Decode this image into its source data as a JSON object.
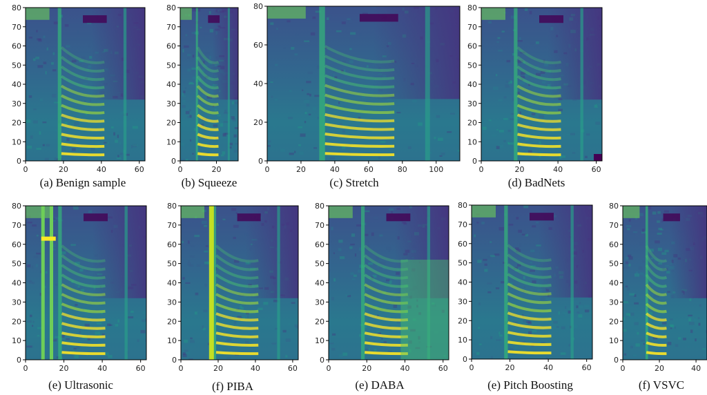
{
  "figure": {
    "palette": [
      "#440154",
      "#46327e",
      "#365c8d",
      "#277f8e",
      "#1fa187",
      "#4ac16d",
      "#a0da39",
      "#fde725"
    ],
    "panels": [
      {
        "caption": "(a) Benign sample",
        "x_ticks": [
          0,
          20,
          40,
          60
        ],
        "x_max": 63,
        "y_ticks": [
          0,
          10,
          20,
          30,
          40,
          50,
          60,
          70,
          80
        ],
        "y_max": 80
      },
      {
        "caption": "(b) Squeeze",
        "x_ticks": [
          0,
          20
        ],
        "x_max": 32,
        "y_ticks": [
          0,
          10,
          20,
          30,
          40,
          50,
          60,
          70,
          80
        ],
        "y_max": 80
      },
      {
        "caption": "(c) Stretch",
        "x_ticks": [
          0,
          20,
          40,
          60,
          80,
          100
        ],
        "x_max": 114,
        "y_ticks": [
          0,
          20,
          40,
          60,
          80
        ],
        "y_max": 80
      },
      {
        "caption": "(d) BadNets",
        "x_ticks": [
          0,
          20,
          40,
          60
        ],
        "x_max": 63,
        "y_ticks": [
          0,
          10,
          20,
          30,
          40,
          50,
          60,
          70,
          80
        ],
        "y_max": 80
      },
      {
        "caption": "(e) Ultrasonic",
        "x_ticks": [
          0,
          20,
          40,
          60
        ],
        "x_max": 63,
        "y_ticks": [
          0,
          10,
          20,
          30,
          40,
          50,
          60,
          70,
          80
        ],
        "y_max": 80
      },
      {
        "caption": "(f) PIBA",
        "x_ticks": [
          0,
          20,
          40,
          60
        ],
        "x_max": 63,
        "y_ticks": [
          0,
          10,
          20,
          30,
          40,
          50,
          60,
          70,
          80
        ],
        "y_max": 80
      },
      {
        "caption": "(e) DABA",
        "x_ticks": [
          0,
          20,
          40,
          60
        ],
        "x_max": 63,
        "y_ticks": [
          0,
          10,
          20,
          30,
          40,
          50,
          60,
          70,
          80
        ],
        "y_max": 80
      },
      {
        "caption": "(e) Pitch Boosting",
        "x_ticks": [
          0,
          20,
          40,
          60
        ],
        "x_max": 63,
        "y_ticks": [
          0,
          10,
          20,
          30,
          40,
          50,
          60,
          70,
          80
        ],
        "y_max": 80
      },
      {
        "caption": "(f) VSVC",
        "x_ticks": [
          0,
          20,
          40
        ],
        "x_max": 46,
        "y_ticks": [
          0,
          10,
          20,
          30,
          40,
          50,
          60,
          70,
          80
        ],
        "y_max": 80
      }
    ]
  }
}
